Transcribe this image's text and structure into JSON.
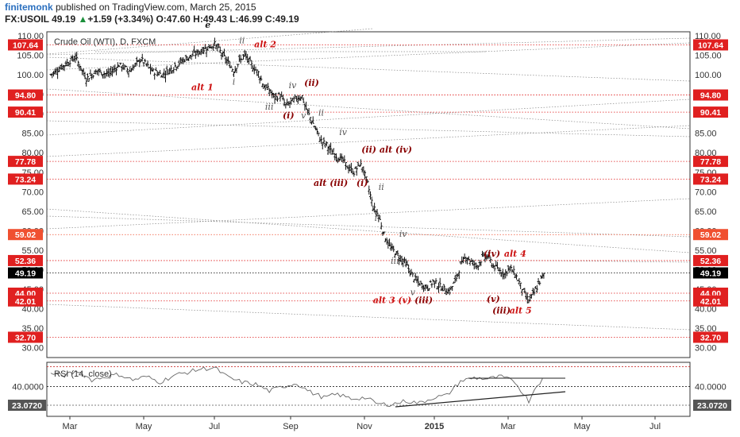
{
  "header": {
    "user": "finitemonk",
    "published": " published on TradingView.com, March 25, 2015",
    "symbol": "FX:USOIL",
    "price": "49.19",
    "change": "+1.59 (+3.34%)",
    "open": "O:47.60",
    "high": "H:49.43",
    "low": "L:46.99",
    "close": "C:49.19"
  },
  "chart_data": [
    {
      "type": "bar",
      "title": "Crude Oil (WTI), D, FXCM",
      "ylim": [
        27.5,
        111
      ],
      "y_ticks": [
        30,
        35,
        40,
        45,
        50,
        55,
        60,
        65,
        70,
        75,
        80,
        85,
        90,
        95,
        100,
        105,
        110
      ],
      "x_ticks": [
        "Mar",
        "May",
        "Jul",
        "Sep",
        "Nov",
        "2015",
        "Mar",
        "May",
        "Jul"
      ],
      "price_path": [
        [
          0,
          100
        ],
        [
          8,
          102
        ],
        [
          18,
          104.5
        ],
        [
          26,
          99
        ],
        [
          34,
          101
        ],
        [
          42,
          100
        ],
        [
          50,
          102.5
        ],
        [
          58,
          101
        ],
        [
          66,
          104
        ],
        [
          74,
          101
        ],
        [
          82,
          100
        ],
        [
          90,
          102
        ],
        [
          98,
          104
        ],
        [
          104,
          105
        ],
        [
          112,
          106.5
        ],
        [
          120,
          107.8
        ],
        [
          124,
          106
        ],
        [
          130,
          103
        ],
        [
          134,
          101
        ],
        [
          138,
          103.5
        ],
        [
          142,
          105
        ],
        [
          148,
          102
        ],
        [
          152,
          100.5
        ],
        [
          156,
          97
        ],
        [
          160,
          96
        ],
        [
          164,
          94
        ],
        [
          168,
          94.8
        ],
        [
          172,
          92
        ],
        [
          176,
          93
        ],
        [
          180,
          94
        ],
        [
          184,
          94.5
        ],
        [
          186,
          92
        ],
        [
          190,
          89
        ],
        [
          194,
          86
        ],
        [
          198,
          83
        ],
        [
          202,
          82
        ],
        [
          206,
          80
        ],
        [
          210,
          79
        ],
        [
          214,
          78
        ],
        [
          218,
          76
        ],
        [
          222,
          75
        ],
        [
          226,
          77
        ],
        [
          228,
          76.5
        ],
        [
          232,
          72
        ],
        [
          236,
          66
        ],
        [
          240,
          64
        ],
        [
          244,
          59
        ],
        [
          248,
          56
        ],
        [
          252,
          54.5
        ],
        [
          256,
          53
        ],
        [
          260,
          51.5
        ],
        [
          264,
          49
        ],
        [
          268,
          47
        ],
        [
          272,
          46
        ],
        [
          276,
          45.5
        ],
        [
          280,
          47
        ],
        [
          284,
          46
        ],
        [
          288,
          45
        ],
        [
          292,
          44.5
        ],
        [
          296,
          47
        ],
        [
          300,
          51
        ],
        [
          304,
          53.5
        ],
        [
          308,
          52
        ],
        [
          312,
          51
        ],
        [
          316,
          53
        ],
        [
          320,
          53.5
        ],
        [
          324,
          51
        ],
        [
          328,
          50
        ],
        [
          332,
          49
        ],
        [
          336,
          50.5
        ],
        [
          340,
          49
        ],
        [
          344,
          46
        ],
        [
          348,
          43
        ],
        [
          350,
          42.2
        ],
        [
          354,
          44
        ],
        [
          358,
          47
        ],
        [
          362,
          49.2
        ]
      ],
      "levels": [
        {
          "value": 107.64,
          "label": "107.64",
          "color": "#e02020",
          "style": "dotted"
        },
        {
          "value": 94.8,
          "label": "94.80",
          "color": "#e02020",
          "style": "dotted"
        },
        {
          "value": 90.41,
          "label": "90.41",
          "color": "#e02020",
          "style": "dotted"
        },
        {
          "value": 77.78,
          "label": "77.78",
          "color": "#e02020",
          "style": "dotted"
        },
        {
          "value": 73.24,
          "label": "73.24",
          "color": "#e02020",
          "style": "dotted"
        },
        {
          "value": 59.02,
          "label": "59.02",
          "color": "#f05030",
          "style": "dotted"
        },
        {
          "value": 52.36,
          "label": "52.36",
          "color": "#e02020",
          "style": "dotted"
        },
        {
          "value": 49.19,
          "label": "49.19",
          "color": "#000000",
          "style": "dotted"
        },
        {
          "value": 44.0,
          "label": "44.00",
          "color": "#e02020",
          "style": "dotted"
        },
        {
          "value": 42.01,
          "label": "42.01",
          "color": "#e02020",
          "style": "dotted"
        },
        {
          "value": 32.7,
          "label": "32.70",
          "color": "#e02020",
          "style": "dotted"
        }
      ],
      "annotations": [
        {
          "text": "e",
          "x": 115,
          "y": 112,
          "color": "#222222",
          "bold": true
        },
        {
          "text": "ii",
          "x": 140,
          "y": 108,
          "color": "#555555",
          "bold": false
        },
        {
          "text": "alt 2",
          "x": 157,
          "y": 107,
          "color": "#cc1111",
          "bold": true
        },
        {
          "text": "alt 1",
          "x": 111,
          "y": 96,
          "color": "#cc1111",
          "bold": true
        },
        {
          "text": "i",
          "x": 134,
          "y": 97.5,
          "color": "#555555",
          "bold": false
        },
        {
          "text": "iv",
          "x": 177,
          "y": 96.5,
          "color": "#555555",
          "bold": false
        },
        {
          "text": "(ii)",
          "x": 191,
          "y": 97.2,
          "color": "#880000",
          "bold": true
        },
        {
          "text": "iii",
          "x": 160,
          "y": 91,
          "color": "#555555",
          "bold": false
        },
        {
          "text": "(i)",
          "x": 174,
          "y": 88.8,
          "color": "#880000",
          "bold": true
        },
        {
          "text": "v",
          "x": 185,
          "y": 88.8,
          "color": "#555555",
          "bold": false
        },
        {
          "text": "ii",
          "x": 198,
          "y": 89.5,
          "color": "#555555",
          "bold": false
        },
        {
          "text": "iv",
          "x": 214,
          "y": 84.5,
          "color": "#555555",
          "bold": false
        },
        {
          "text": "iii",
          "x": 205,
          "y": 79.5,
          "color": "#555555",
          "bold": false
        },
        {
          "text": "(ii) alt (iv)",
          "x": 246,
          "y": 80,
          "color": "#880000",
          "bold": true
        },
        {
          "text": "alt (iii)",
          "x": 205,
          "y": 71.5,
          "color": "#880000",
          "bold": true
        },
        {
          "text": "(i)",
          "x": 228,
          "y": 71.5,
          "color": "#880000",
          "bold": true
        },
        {
          "text": "ii",
          "x": 242,
          "y": 70.5,
          "color": "#555555",
          "bold": false
        },
        {
          "text": "i",
          "x": 238,
          "y": 62.5,
          "color": "#555555",
          "bold": false
        },
        {
          "text": "iv",
          "x": 258,
          "y": 58.5,
          "color": "#555555",
          "bold": false
        },
        {
          "text": "iii",
          "x": 252,
          "y": 51.5,
          "color": "#555555",
          "bold": false
        },
        {
          "text": "v",
          "x": 265,
          "y": 43.5,
          "color": "#555555",
          "bold": false
        },
        {
          "text": "alt 3 (v)",
          "x": 250,
          "y": 41.5,
          "color": "#cc1111",
          "bold": true
        },
        {
          "text": "(iii)",
          "x": 273,
          "y": 41.5,
          "color": "#880000",
          "bold": true
        },
        {
          "text": "(iv)",
          "x": 323,
          "y": 53.4,
          "color": "#880000",
          "bold": true
        },
        {
          "text": "alt 4",
          "x": 340,
          "y": 53.4,
          "color": "#cc1111",
          "bold": true
        },
        {
          "text": "(v)",
          "x": 324,
          "y": 41.8,
          "color": "#880000",
          "bold": true
        },
        {
          "text": "(iii)",
          "x": 330,
          "y": 38.8,
          "color": "#880000",
          "bold": true
        },
        {
          "text": "alt 5",
          "x": 344,
          "y": 38.8,
          "color": "#cc1111",
          "bold": true
        }
      ]
    },
    {
      "type": "line",
      "title": "RSI (14, close)",
      "ylim": [
        13,
        62
      ],
      "levels": [
        {
          "value": 40.0,
          "label": "40.0000",
          "color": "#000000"
        },
        {
          "value": 23.072,
          "label": "23.0720",
          "color": "#555555"
        }
      ],
      "rsi_path": [
        [
          0,
          52
        ],
        [
          10,
          50
        ],
        [
          20,
          54
        ],
        [
          30,
          46
        ],
        [
          40,
          49
        ],
        [
          50,
          51
        ],
        [
          60,
          46
        ],
        [
          70,
          49
        ],
        [
          80,
          44
        ],
        [
          90,
          50
        ],
        [
          100,
          53
        ],
        [
          110,
          56
        ],
        [
          120,
          57
        ],
        [
          130,
          48
        ],
        [
          140,
          44
        ],
        [
          150,
          42
        ],
        [
          160,
          36
        ],
        [
          170,
          40
        ],
        [
          180,
          43
        ],
        [
          190,
          35
        ],
        [
          200,
          30
        ],
        [
          210,
          33
        ],
        [
          220,
          29
        ],
        [
          230,
          30
        ],
        [
          240,
          24
        ],
        [
          250,
          24
        ],
        [
          260,
          27
        ],
        [
          270,
          25
        ],
        [
          280,
          30
        ],
        [
          290,
          32
        ],
        [
          300,
          45
        ],
        [
          310,
          48
        ],
        [
          320,
          47
        ],
        [
          330,
          49
        ],
        [
          340,
          44
        ],
        [
          350,
          27
        ],
        [
          356,
          42
        ],
        [
          362,
          48
        ]
      ]
    }
  ]
}
